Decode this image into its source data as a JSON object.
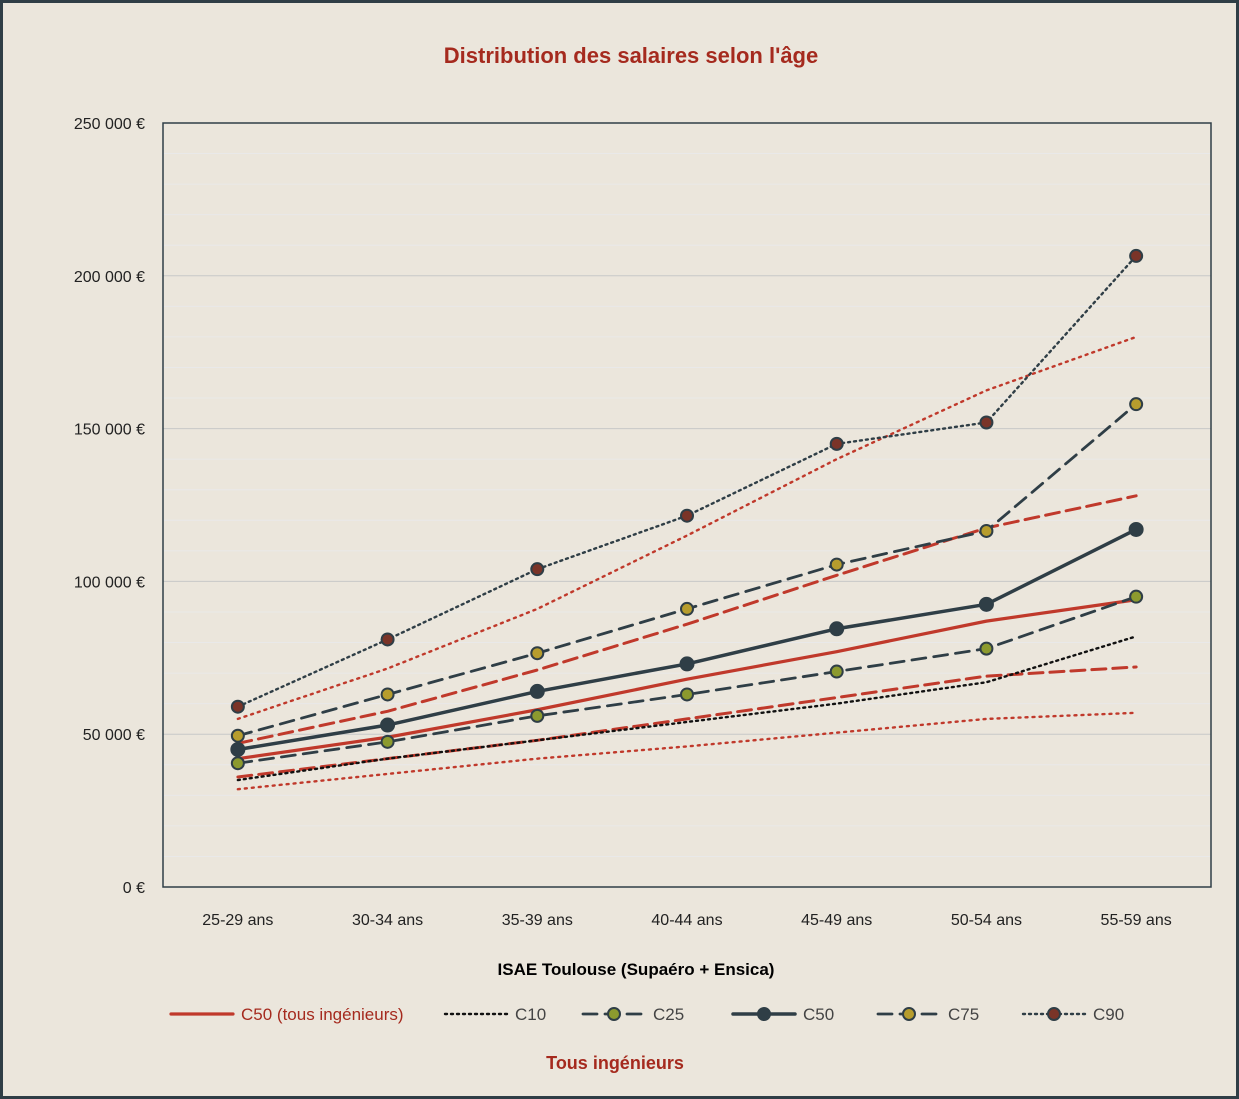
{
  "chart_data": {
    "type": "line",
    "title": "Distribution des salaires selon l'âge",
    "xlabel": "ISAE Toulouse (Supaéro + Ensica)",
    "footer": "Tous ingénieurs",
    "categories": [
      "25-29 ans",
      "30-34 ans",
      "35-39 ans",
      "40-44 ans",
      "45-49 ans",
      "50-54 ans",
      "55-59 ans"
    ],
    "ylim": [
      0,
      250000
    ],
    "yticks": [
      0,
      50000,
      100000,
      150000,
      200000,
      250000
    ],
    "ytick_labels": [
      "0 €",
      "50 000 €",
      "100 000 €",
      "150 000 €",
      "200 000 €",
      "250 000 €"
    ],
    "grid": true,
    "legend_position": "bottom",
    "series": [
      {
        "name": "C50 (tous ingénieurs)",
        "group": "isae",
        "values": [
          42000,
          49000,
          58000,
          68000,
          77000,
          87000,
          94000
        ],
        "color": "#c0392b",
        "style": "solid",
        "marker": false
      },
      {
        "name": "C10",
        "group": "isae",
        "values": [
          35000,
          42000,
          48000,
          54000,
          60000,
          67000,
          82000
        ],
        "color": "#111111",
        "style": "dotted",
        "marker": false
      },
      {
        "name": "C25",
        "group": "isae",
        "values": [
          40500,
          47500,
          56000,
          63000,
          70500,
          78000,
          95000
        ],
        "color": "#2f3e46",
        "style": "dashed",
        "marker": "green"
      },
      {
        "name": "C50",
        "group": "isae",
        "values": [
          45000,
          53000,
          64000,
          73000,
          84500,
          92500,
          117000
        ],
        "color": "#2f3e46",
        "style": "solid-thick",
        "marker": "dark"
      },
      {
        "name": "C75",
        "group": "isae",
        "values": [
          49500,
          63000,
          76500,
          91000,
          105500,
          116500,
          158000
        ],
        "color": "#2f3e46",
        "style": "dashed",
        "marker": "olive"
      },
      {
        "name": "C90",
        "group": "isae",
        "values": [
          59000,
          81000,
          104000,
          121500,
          145000,
          152000,
          206500
        ],
        "color": "#2f3e46",
        "style": "dotted",
        "marker": "brown"
      },
      {
        "group": "tous",
        "values": [
          32000,
          37000,
          42000,
          46000,
          50500,
          55000,
          57000
        ],
        "color": "#c0392b",
        "style": "dotted",
        "marker": false
      },
      {
        "group": "tous",
        "values": [
          36000,
          42000,
          48000,
          55000,
          62000,
          69000,
          72000
        ],
        "color": "#c0392b",
        "style": "dashed",
        "marker": false
      },
      {
        "group": "tous",
        "values": [
          47000,
          57500,
          71000,
          86000,
          102000,
          117500,
          128000
        ],
        "color": "#c0392b",
        "style": "dashed",
        "marker": false
      },
      {
        "group": "tous",
        "values": [
          55000,
          71500,
          91000,
          115000,
          140000,
          162500,
          180000
        ],
        "color": "#c0392b",
        "style": "dotted",
        "marker": false
      }
    ]
  }
}
